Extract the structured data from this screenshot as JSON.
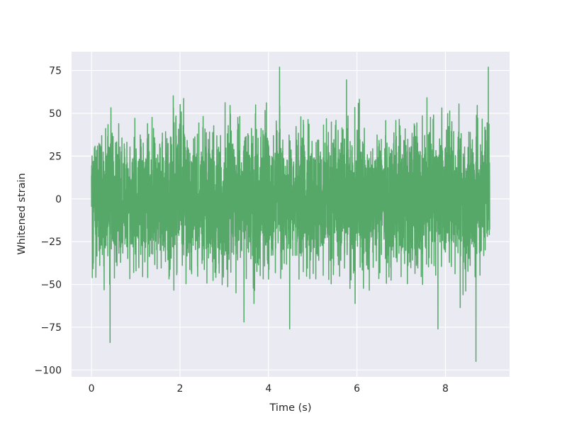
{
  "chart_data": {
    "type": "line",
    "title": "",
    "xlabel": "Time (s)",
    "ylabel": "Whitened strain",
    "xlim": [
      -0.45,
      9.45
    ],
    "ylim": [
      -104,
      86
    ],
    "xticks": [
      0,
      2,
      4,
      6,
      8
    ],
    "yticks": [
      -100,
      -75,
      -50,
      -25,
      0,
      25,
      50,
      75
    ],
    "ytick_labels": [
      "−100",
      "−75",
      "−50",
      "−25",
      "0",
      "25",
      "50",
      "75"
    ],
    "grid": true,
    "legend": "none",
    "series": [
      {
        "color": "#55a868",
        "x_range": [
          0,
          9.0
        ],
        "points": 4096,
        "distribution": "whitened Gaussian noise, sd ≈ 20",
        "extremes": [
          {
            "x": 4.25,
            "y": 77
          },
          {
            "x": 8.97,
            "y": 77
          },
          {
            "x": 0.42,
            "y": -84
          },
          {
            "x": 8.69,
            "y": -95
          },
          {
            "x": 4.48,
            "y": -76
          },
          {
            "x": 7.83,
            "y": -76
          }
        ]
      }
    ]
  },
  "colors": {
    "plot_background": "#eaeaf2",
    "grid": "#ffffff",
    "line": "#55a868",
    "text": "#262626"
  }
}
